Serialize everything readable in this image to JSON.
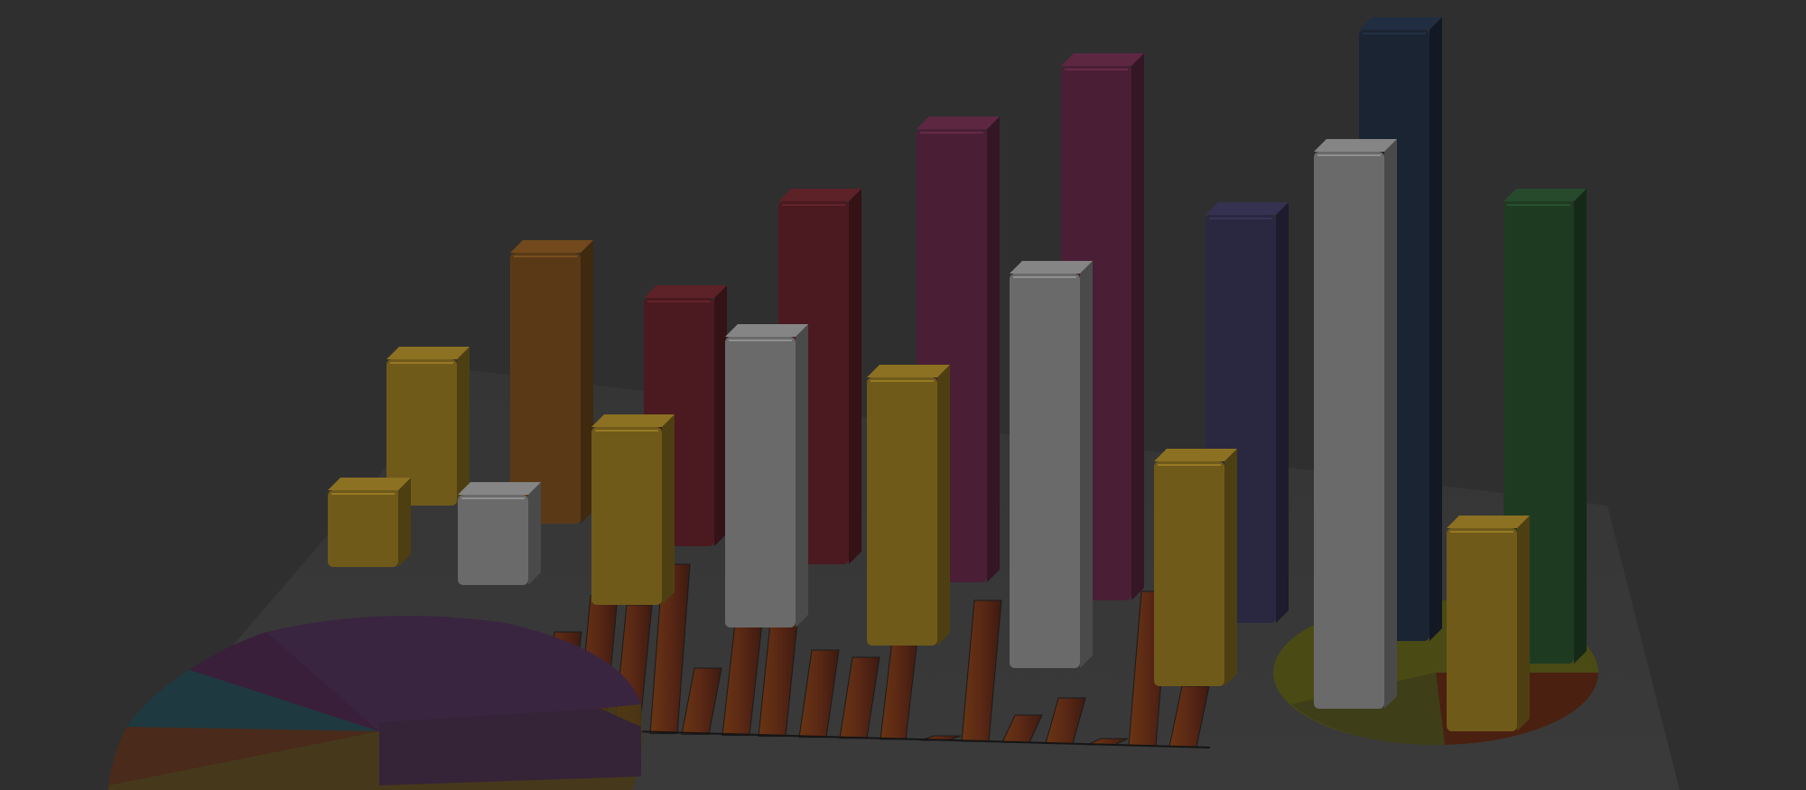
{
  "scene": {
    "description_tag": "3d-bar-chart-illustration",
    "background_color": "#2f2f2f",
    "floor_color": "#3a3a3a",
    "bar_colors": {
      "gold": "#6f5a1a",
      "bronze": "#5a3a16",
      "crimson": "#4a1a20",
      "silver": "#6a6a6a",
      "magenta": "#4a1f35",
      "navy": "#2a2740",
      "midnight": "#1a2433",
      "green": "#1e3b22"
    },
    "pie_colors": [
      "#3a2540",
      "#3a1f3a",
      "#1e3a40",
      "#4a2a1a",
      "#4a3a14",
      "#3e3e3e"
    ],
    "small_pie_colors": [
      "#4a4a15",
      "#4a2010",
      "#3e3e18"
    ],
    "flat_bar_color": "#5a2815"
  }
}
